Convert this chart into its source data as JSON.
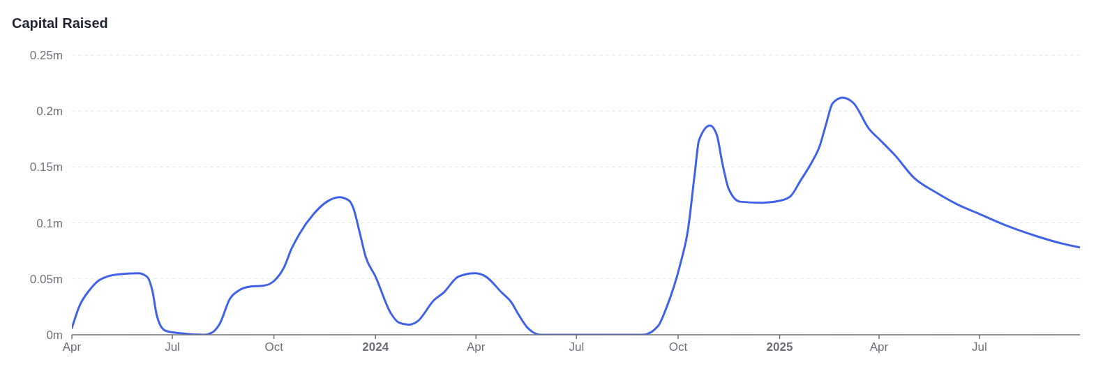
{
  "chart_data": {
    "type": "line",
    "title": "Capital Raised",
    "x": [
      "2023-04-01",
      "2023-04-08",
      "2023-04-17",
      "2023-04-26",
      "2023-05-12",
      "2023-05-31",
      "2023-06-08",
      "2023-06-13",
      "2023-06-17",
      "2023-06-24",
      "2023-07-03",
      "2023-07-30",
      "2023-08-06",
      "2023-08-13",
      "2023-08-22",
      "2023-08-31",
      "2023-09-09",
      "2023-09-22",
      "2023-10-01",
      "2023-10-10",
      "2023-10-17",
      "2023-10-24",
      "2023-11-06",
      "2023-11-18",
      "2023-11-29",
      "2023-12-08",
      "2023-12-12",
      "2023-12-18",
      "2023-12-23",
      "2024-01-01",
      "2024-01-15",
      "2024-01-22",
      "2024-01-31",
      "2024-02-08",
      "2024-02-23",
      "2024-03-03",
      "2024-03-16",
      "2024-03-31",
      "2024-04-10",
      "2024-04-24",
      "2024-05-03",
      "2024-05-09",
      "2024-05-18",
      "2024-05-30",
      "2024-08-30",
      "2024-09-13",
      "2024-09-20",
      "2024-10-03",
      "2024-10-10",
      "2024-10-16",
      "2024-10-20",
      "2024-10-30",
      "2024-11-05",
      "2024-11-10",
      "2024-11-16",
      "2024-11-26",
      "2024-12-17",
      "2025-01-02",
      "2025-01-11",
      "2025-01-20",
      "2025-01-30",
      "2025-02-06",
      "2025-02-12",
      "2025-02-18",
      "2025-02-27",
      "2025-03-09",
      "2025-03-23",
      "2025-04-01",
      "2025-04-15",
      "2025-05-03",
      "2025-05-23",
      "2025-06-10",
      "2025-07-01",
      "2025-07-27",
      "2025-08-19",
      "2025-09-12",
      "2025-09-30"
    ],
    "series": [
      {
        "color": "#4062e8",
        "values": [
          0.006,
          0.026,
          0.04,
          0.049,
          0.054,
          0.055,
          0.052,
          0.039,
          0.017,
          0.004,
          0.002,
          0,
          0.002,
          0.01,
          0.032,
          0.04,
          0.043,
          0.044,
          0.048,
          0.06,
          0.077,
          0.09,
          0.108,
          0.119,
          0.123,
          0.12,
          0.113,
          0.09,
          0.07,
          0.052,
          0.019,
          0.011,
          0.009,
          0.012,
          0.031,
          0.038,
          0.052,
          0.055,
          0.052,
          0.038,
          0.029,
          0.019,
          0.006,
          0,
          0,
          0.008,
          0.023,
          0.063,
          0.094,
          0.143,
          0.174,
          0.187,
          0.179,
          0.154,
          0.13,
          0.119,
          0.118,
          0.12,
          0.124,
          0.138,
          0.154,
          0.168,
          0.188,
          0.207,
          0.212,
          0.207,
          0.184,
          0.175,
          0.161,
          0.14,
          0.127,
          0.117,
          0.108,
          0.097,
          0.089,
          0.082,
          0.078
        ]
      }
    ],
    "xlim": [
      "2023-04-01",
      "2025-09-30"
    ],
    "xticks": [
      {
        "value": "2023-04-01",
        "label": "Apr"
      },
      {
        "value": "2023-07-01",
        "label": "Jul"
      },
      {
        "value": "2023-10-01",
        "label": "Oct"
      },
      {
        "value": "2024-01-01",
        "label": "2024"
      },
      {
        "value": "2024-04-01",
        "label": "Apr"
      },
      {
        "value": "2024-07-01",
        "label": "Jul"
      },
      {
        "value": "2024-10-01",
        "label": "Oct"
      },
      {
        "value": "2025-01-01",
        "label": "2025"
      },
      {
        "value": "2025-04-01",
        "label": "Apr"
      },
      {
        "value": "2025-07-01",
        "label": "Jul"
      }
    ],
    "ylim": [
      0,
      0.25
    ],
    "yticks": [
      {
        "value": 0,
        "label": "0m"
      },
      {
        "value": 0.05,
        "label": "0.05m"
      },
      {
        "value": 0.1,
        "label": "0.1m"
      },
      {
        "value": 0.15,
        "label": "0.15m"
      },
      {
        "value": 0.2,
        "label": "0.2m"
      },
      {
        "value": 0.25,
        "label": "0.25m"
      }
    ],
    "grid": "y",
    "marker": "none",
    "line_style": "solid"
  }
}
